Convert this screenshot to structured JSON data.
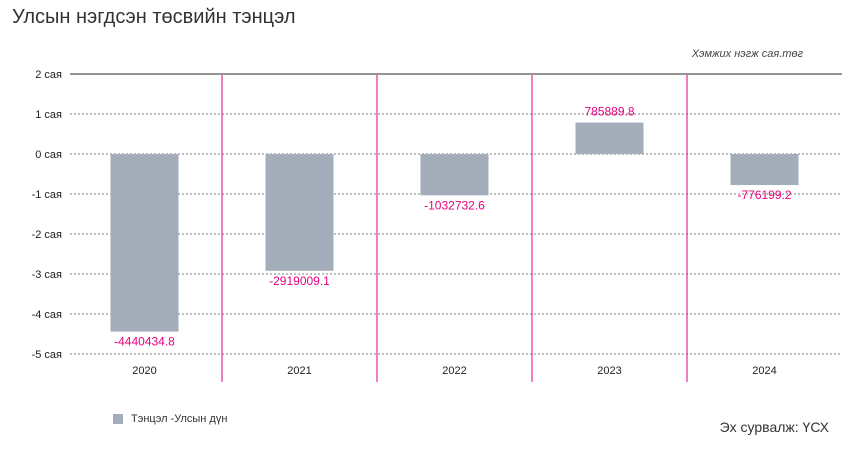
{
  "header": {
    "title": "Улсын нэгдсэн төсвийн тэнцэл",
    "unit_note": "Хэмжих нэгж сая.төг"
  },
  "footer": {
    "source": "Эх сурвалж: ҮСХ"
  },
  "colors": {
    "bar": "#a4adba",
    "label": "#e6007e",
    "separator": "#e6007e",
    "grid": "#555555",
    "axis": "#555555"
  },
  "chart_data": {
    "type": "bar",
    "categories": [
      "2020",
      "2021",
      "2022",
      "2023",
      "2024"
    ],
    "series": [
      {
        "name": "Тэнцэл -Улсын дүн",
        "values": [
          -4440434.8,
          -2919009.1,
          -1032732.6,
          785889.8,
          -776199.2
        ],
        "labels": [
          "-4440434.8",
          "-2919009.1",
          "-1032732.6",
          "785889.8",
          "-776199.2"
        ]
      }
    ],
    "ylim": [
      -5000000,
      2000000
    ],
    "yticks": [
      2000000,
      1000000,
      0,
      -1000000,
      -2000000,
      -3000000,
      -4000000,
      -5000000
    ],
    "ytick_labels": [
      "2 сая",
      "1 сая",
      "0 сая",
      "-1 сая",
      "-2 сая",
      "-3 сая",
      "-4 сая",
      "-5 сая"
    ],
    "grid": true,
    "legend": "bottom-left"
  }
}
